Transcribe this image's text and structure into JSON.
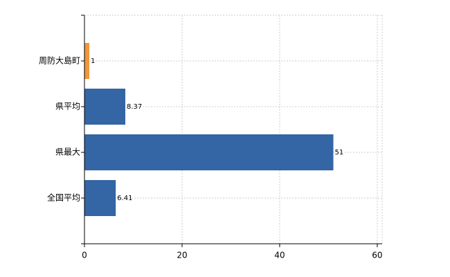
{
  "chart_data": {
    "type": "barh",
    "categories": [
      "周防大島町",
      "県平均",
      "県最大",
      "全国平均"
    ],
    "values": [
      1,
      8.37,
      51,
      6.41
    ],
    "colors": [
      "#f0963c",
      "#3465a4",
      "#3465a4",
      "#3465a4"
    ],
    "xlim": [
      0,
      61
    ],
    "xticks": [
      0,
      20,
      40,
      60
    ],
    "grid": true
  }
}
